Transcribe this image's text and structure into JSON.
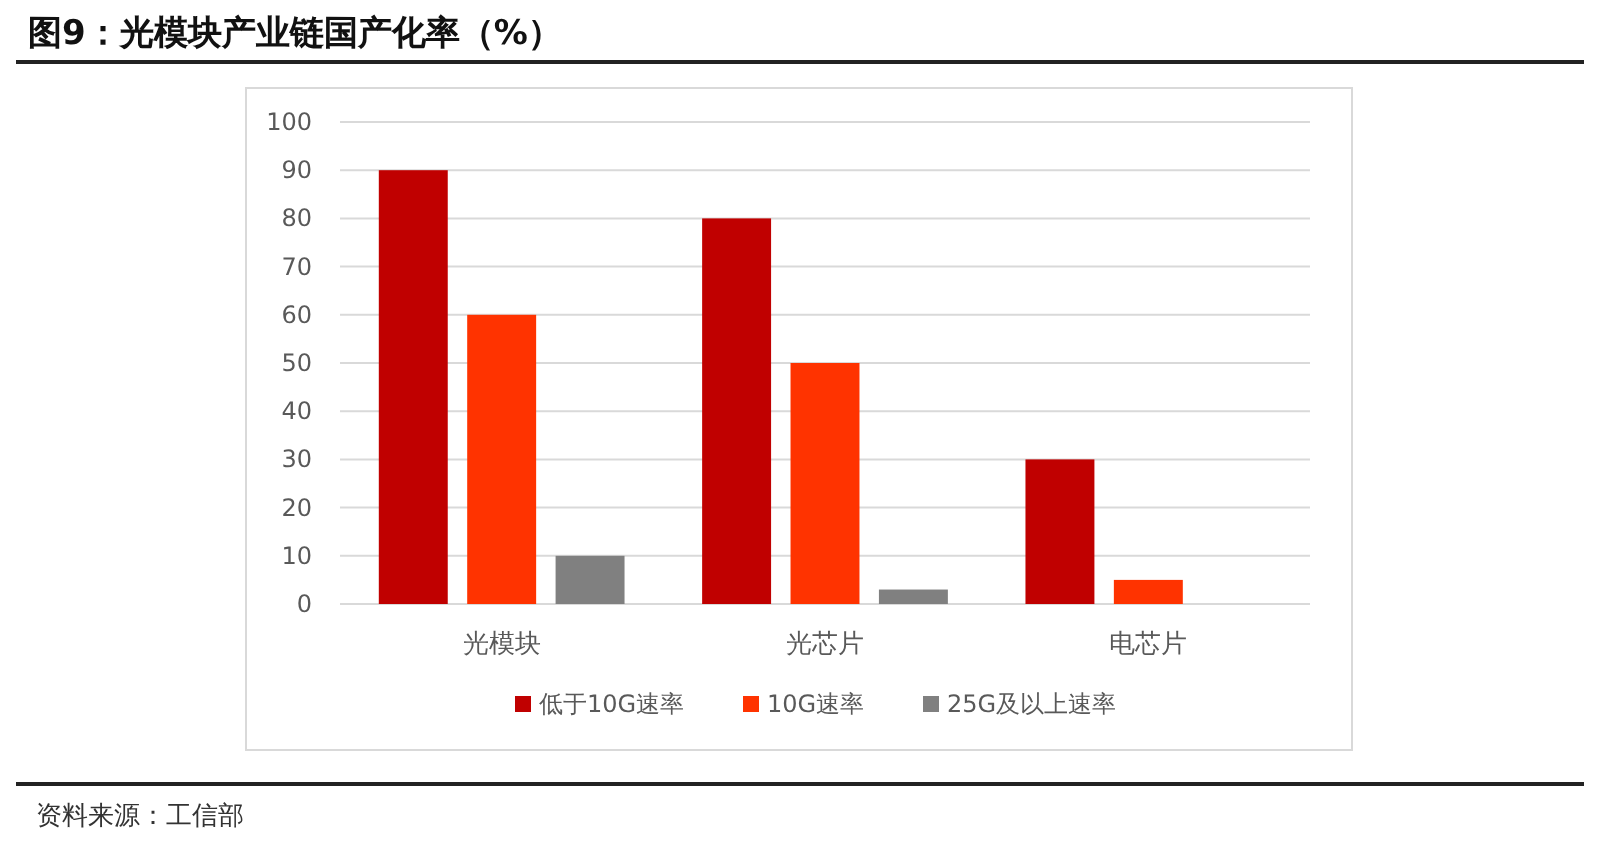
{
  "chart_data": {
    "type": "bar",
    "title": "图9：光模块产业链国产化率（%）",
    "annotations": [
      "资料来源：工信部"
    ],
    "categories": [
      "光模块",
      "光芯片",
      "电芯片"
    ],
    "series": [
      {
        "name": "低于10G速率",
        "color": "#c00000",
        "values": [
          90,
          80,
          30
        ]
      },
      {
        "name": "10G速率",
        "color": "#ff3300",
        "values": [
          60,
          50,
          5
        ]
      },
      {
        "name": "25G及以上速率",
        "color": "#808080",
        "values": [
          10,
          3,
          null
        ]
      }
    ],
    "ylim": [
      0,
      100
    ],
    "yticks": [
      0,
      10,
      20,
      30,
      40,
      50,
      60,
      70,
      80,
      90,
      100
    ],
    "grid": "y",
    "legend": "bottom"
  }
}
